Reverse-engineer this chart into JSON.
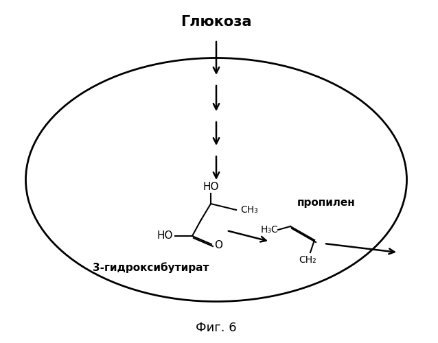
{
  "title": "Глюкоза",
  "caption": "Фиг. 6",
  "label_3hb": "3-гидроксибутират",
  "label_propylene": "пропилен",
  "background_color": "#ffffff"
}
